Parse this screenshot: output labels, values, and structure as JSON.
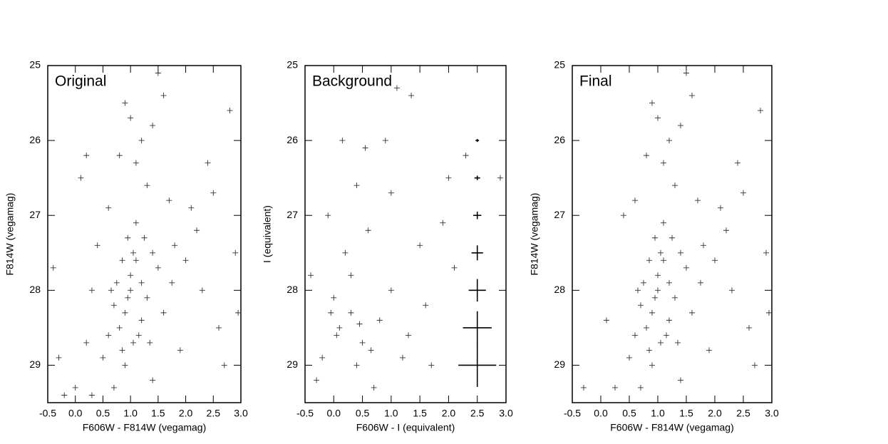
{
  "chart_data": [
    {
      "type": "scatter",
      "title": "Original",
      "x_label": "F606W - F814W (vegamag)",
      "y_label": "F814W (vegamag)",
      "xlim": [
        -0.5,
        3.0
      ],
      "ylim": [
        29.5,
        25
      ],
      "xticks": [
        -0.5,
        {
          "value": 0,
          "label": "0.0"
        },
        0.5,
        {
          "value": 1,
          "label": "1.0"
        },
        1.5,
        {
          "value": 2,
          "label": "2.0"
        },
        2.5,
        {
          "value": 3,
          "label": "3.0"
        }
      ],
      "yticks": [
        25,
        26,
        27,
        28,
        29
      ],
      "color": "#333333",
      "x": [
        0.9,
        1.0,
        1.1,
        0.8,
        1.2,
        0.95,
        1.05,
        0.7,
        1.3,
        1.1,
        0.85,
        1.4,
        0.6,
        1.0,
        1.2,
        0.75,
        1.5,
        0.9,
        1.6,
        0.5,
        1.8,
        2.0,
        2.2,
        1.7,
        1.3,
        1.1,
        1.4,
        1.6,
        1.5,
        0.9,
        2.5,
        2.8,
        2.3,
        2.6,
        2.9,
        0.3,
        0.2,
        0.0,
        -0.3,
        -0.2,
        0.4,
        0.6,
        0.8,
        1.2,
        2.1,
        1.9,
        1.4,
        0.7,
        0.3,
        -0.4,
        2.7,
        2.4,
        0.1,
        1.0,
        1.25,
        0.95,
        1.15,
        0.65,
        1.35,
        1.05,
        0.85,
        1.75,
        2.95,
        0.2
      ],
      "values": [
        28.3,
        28.0,
        27.6,
        28.5,
        27.9,
        27.3,
        28.7,
        28.2,
        28.1,
        27.1,
        28.8,
        27.5,
        28.6,
        27.8,
        28.4,
        27.9,
        27.7,
        29.0,
        28.3,
        28.9,
        27.4,
        27.6,
        27.2,
        26.8,
        26.6,
        26.3,
        25.8,
        25.4,
        25.1,
        25.5,
        26.7,
        25.6,
        28.0,
        28.5,
        27.5,
        28.0,
        28.7,
        29.3,
        28.9,
        29.4,
        27.4,
        26.9,
        26.2,
        26.0,
        26.9,
        28.8,
        29.2,
        29.3,
        29.4,
        27.7,
        29.0,
        26.3,
        26.5,
        25.7,
        27.3,
        28.1,
        28.6,
        28.0,
        28.7,
        27.5,
        27.6,
        27.9,
        28.3,
        26.2
      ]
    },
    {
      "type": "scatter",
      "title": "Background",
      "x_label": "F606W - I (equivalent)",
      "y_label": "I (equivalent)",
      "xlim": [
        -0.5,
        3.0
      ],
      "ylim": [
        29.5,
        25
      ],
      "xticks": [
        -0.5,
        {
          "value": 0,
          "label": "0.0"
        },
        0.5,
        {
          "value": 1,
          "label": "1.0"
        },
        1.5,
        {
          "value": 2,
          "label": "2.0"
        },
        2.5,
        {
          "value": 3,
          "label": "3.0"
        }
      ],
      "yticks": [
        25,
        26,
        27,
        28,
        29
      ],
      "color": "#333333",
      "x": [
        0.1,
        0.3,
        0.5,
        -0.2,
        0.0,
        0.4,
        0.8,
        1.0,
        1.3,
        -0.4,
        0.2,
        0.6,
        1.5,
        1.9,
        2.3,
        2.0,
        0.4,
        -0.1,
        0.9,
        1.1,
        1.35,
        0.15,
        0.55,
        1.2,
        1.7,
        0.7,
        -0.3,
        0.3,
        1.0,
        2.1,
        1.6,
        0.05,
        0.45,
        0.65,
        -0.05,
        2.9
      ],
      "values": [
        28.5,
        28.3,
        28.7,
        28.9,
        28.1,
        29.0,
        28.4,
        28.0,
        28.6,
        27.8,
        27.5,
        27.2,
        27.4,
        27.1,
        26.2,
        26.5,
        26.6,
        27.0,
        26.0,
        25.3,
        25.4,
        26.0,
        26.1,
        28.9,
        29.0,
        29.3,
        29.2,
        27.8,
        26.7,
        27.7,
        28.2,
        28.6,
        28.45,
        28.8,
        28.3,
        26.5
      ],
      "error_bars": {
        "x": [
          2.5,
          2.5,
          2.5,
          2.5,
          2.5,
          2.5,
          2.5
        ],
        "values": [
          26,
          26.5,
          27,
          27.5,
          28,
          28.5,
          29
        ],
        "xerr": [
          0.03,
          0.05,
          0.07,
          0.1,
          0.15,
          0.25,
          0.33
        ],
        "yerr": [
          0.02,
          0.03,
          0.05,
          0.1,
          0.15,
          0.22,
          0.29
        ]
      }
    },
    {
      "type": "scatter",
      "title": "Final",
      "x_label": "F606W - F814W (vegamag)",
      "y_label": "F814W (vegamag)",
      "xlim": [
        -0.5,
        3.0
      ],
      "ylim": [
        29.5,
        25
      ],
      "xticks": [
        -0.5,
        {
          "value": 0,
          "label": "0.0"
        },
        0.5,
        {
          "value": 1,
          "label": "1.0"
        },
        1.5,
        {
          "value": 2,
          "label": "2.0"
        },
        2.5,
        {
          "value": 3,
          "label": "3.0"
        }
      ],
      "yticks": [
        25,
        26,
        27,
        28,
        29
      ],
      "color": "#333333",
      "x": [
        0.9,
        1.0,
        1.1,
        0.8,
        1.2,
        0.95,
        1.05,
        0.7,
        1.3,
        1.1,
        0.85,
        1.4,
        0.6,
        1.0,
        1.2,
        0.75,
        1.5,
        0.9,
        1.6,
        0.5,
        1.8,
        2.0,
        2.2,
        1.7,
        1.3,
        1.1,
        1.4,
        1.6,
        1.5,
        0.9,
        2.5,
        2.8,
        2.3,
        2.6,
        2.9,
        0.25,
        0.1,
        -0.3,
        0.4,
        0.6,
        0.8,
        1.2,
        2.1,
        1.9,
        1.4,
        0.7,
        2.7,
        2.4,
        1.0,
        1.25,
        0.95,
        1.15,
        0.65,
        1.35,
        1.05,
        0.85,
        1.75,
        2.95
      ],
      "values": [
        28.3,
        28.0,
        27.6,
        28.5,
        27.9,
        27.3,
        28.7,
        28.2,
        28.1,
        27.1,
        28.8,
        27.5,
        28.6,
        27.8,
        28.4,
        27.9,
        27.7,
        29.0,
        28.3,
        28.9,
        27.4,
        27.6,
        27.2,
        26.8,
        26.6,
        26.3,
        25.8,
        25.4,
        25.1,
        25.5,
        26.7,
        25.6,
        28.0,
        28.5,
        27.5,
        29.3,
        28.4,
        29.3,
        27.0,
        26.8,
        26.2,
        26.0,
        26.9,
        28.8,
        29.2,
        29.3,
        29.0,
        26.3,
        25.7,
        27.3,
        28.1,
        28.6,
        28.0,
        28.7,
        27.5,
        27.6,
        27.9,
        28.3
      ]
    }
  ]
}
